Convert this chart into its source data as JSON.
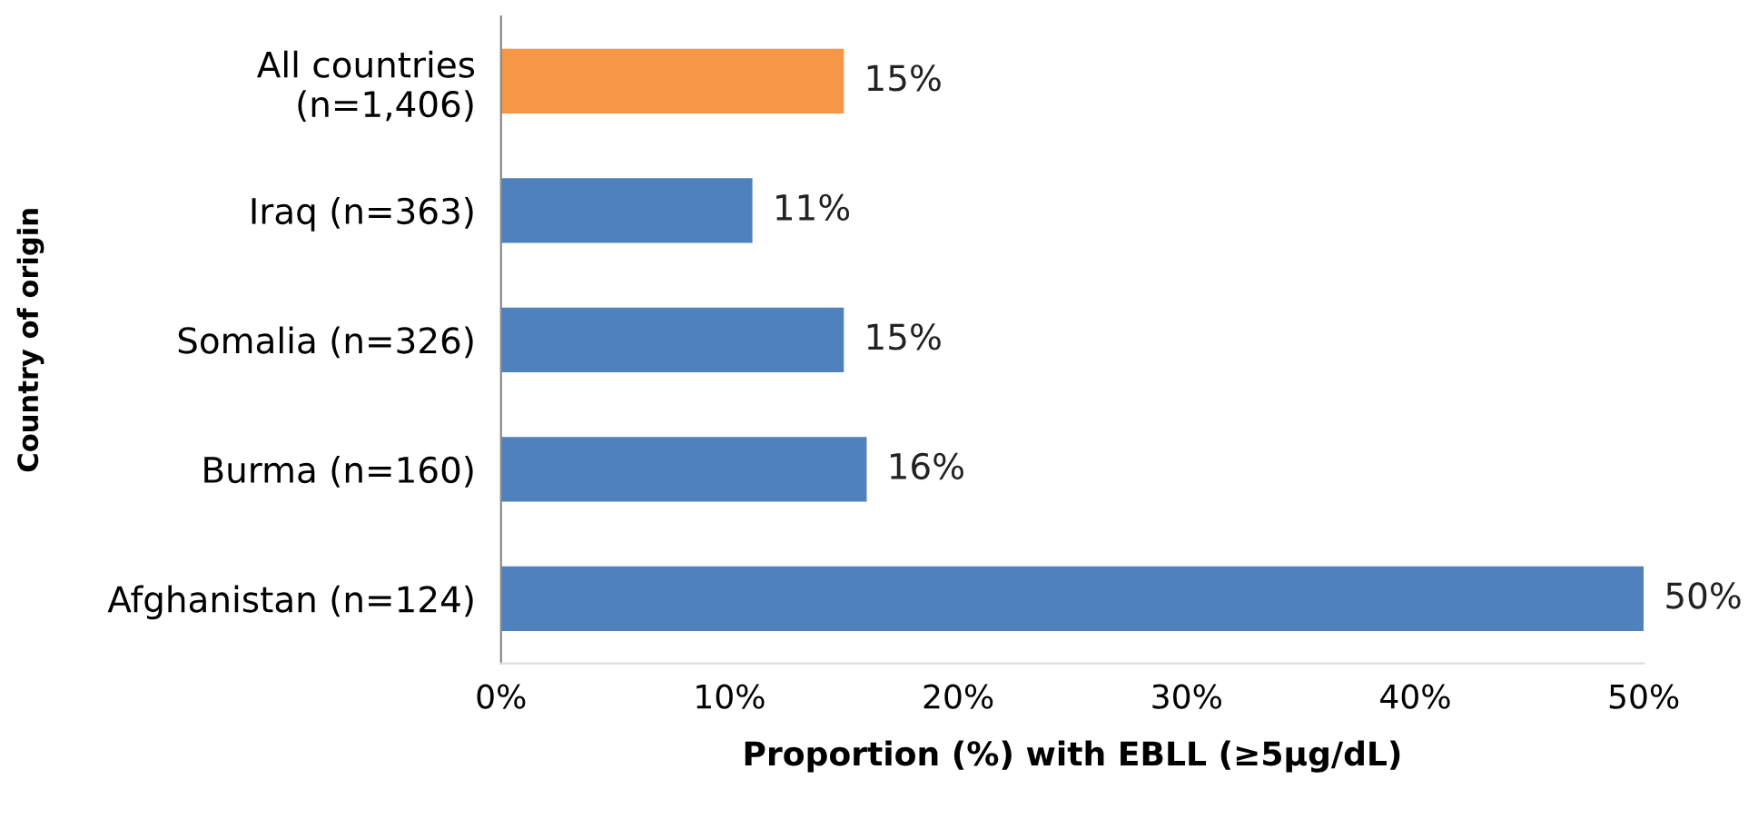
{
  "chart_data": {
    "type": "bar",
    "orientation": "horizontal",
    "ylabel": "Country of origin",
    "xlabel": "Proportion (%) with EBLL (≥5µg/dL)",
    "categories": [
      "All countries\n(n=1,406)",
      "Iraq (n=363)",
      "Somalia (n=326)",
      "Burma (n=160)",
      "Afghanistan (n=124)"
    ],
    "values": [
      15,
      11,
      15,
      16,
      50
    ],
    "value_labels": [
      "15%",
      "11%",
      "15%",
      "16%",
      "50%"
    ],
    "colors": [
      "#f79646",
      "#4f81bd",
      "#4f81bd",
      "#4f81bd",
      "#4f81bd"
    ],
    "xlim": [
      0,
      50
    ],
    "xticks": [
      {
        "value": 0,
        "label": "0%"
      },
      {
        "value": 10,
        "label": "10%"
      },
      {
        "value": 20,
        "label": "20%"
      },
      {
        "value": 30,
        "label": "30%"
      },
      {
        "value": 40,
        "label": "40%"
      },
      {
        "value": 50,
        "label": "50%"
      }
    ],
    "grid": false,
    "legend": false
  }
}
